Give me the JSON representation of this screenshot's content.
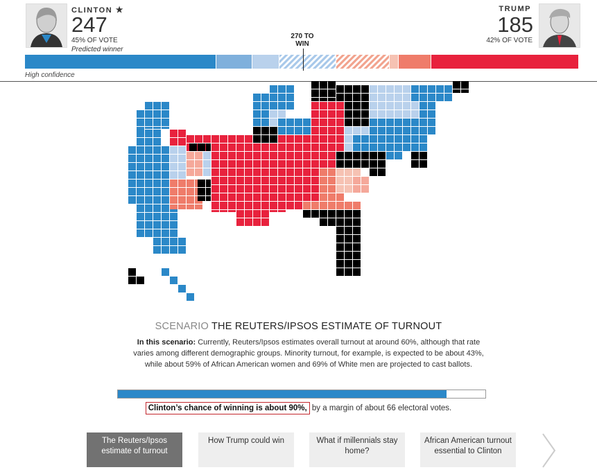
{
  "header": {
    "left": {
      "name": "CLINTON",
      "star_icon": "star-icon",
      "votes": "247",
      "pct": "45% OF VOTE",
      "note": "Predicted winner"
    },
    "right": {
      "name": "TRUMP",
      "votes": "185",
      "pct": "42% OF VOTE"
    },
    "threshold": "270 TO WIN",
    "confidence": "High confidence",
    "colors": {
      "strong_dem": "#2b88c8",
      "lean_dem": "#7fb0dc",
      "tilt_dem": "#b9d1ec",
      "tossup_dem": "#c9dcef",
      "tossup_rep": "#f6c2b3",
      "tilt_rep": "#f5a89a",
      "lean_rep": "#ef7c6a",
      "strong_rep": "#e8223d",
      "other": "#000000"
    }
  },
  "scenario": {
    "prefix": "SCENARIO",
    "title": "THE REUTERS/IPSOS ESTIMATE OF TURNOUT",
    "lead": "In this scenario:",
    "body": "Currently, Reuters/Ipsos estimates overall turnout at around 60%, although that rate varies among different demographic groups. Minority turnout, for example, is expected to be about 43%, while about 59% of African American women and 69% of White men are projected to cast ballots.",
    "chance_highlight": "Clinton’s chance of winning is about 90%,",
    "chance_rest": " by a margin of about 66 electoral votes.",
    "chance_fraction": 0.895
  },
  "cards": [
    {
      "label": "The Reuters/Ipsos estimate of turnout",
      "active": true
    },
    {
      "label": "How Trump could win",
      "active": false
    },
    {
      "label": "What if millennials stay home?",
      "active": false
    },
    {
      "label": "African American turnout essential to Clinton",
      "active": false
    }
  ],
  "next_icon": "chevron-right-icon"
}
